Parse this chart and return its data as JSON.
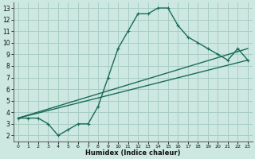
{
  "xlabel": "Humidex (Indice chaleur)",
  "background_color": "#cde8e0",
  "grid_color": "#a8cdc4",
  "line_color": "#1a6b5a",
  "xlim": [
    -0.5,
    23.5
  ],
  "ylim": [
    1.5,
    13.5
  ],
  "xticks": [
    0,
    1,
    2,
    3,
    4,
    5,
    6,
    7,
    8,
    9,
    10,
    11,
    12,
    13,
    14,
    15,
    16,
    17,
    18,
    19,
    20,
    21,
    22,
    23
  ],
  "yticks": [
    2,
    3,
    4,
    5,
    6,
    7,
    8,
    9,
    10,
    11,
    12,
    13
  ],
  "line1_x": [
    0,
    1,
    2,
    3,
    4,
    5,
    6,
    7,
    8,
    9,
    10,
    11,
    12,
    13,
    14,
    15,
    16,
    17,
    18,
    19,
    20,
    21,
    22,
    23
  ],
  "line1_y": [
    3.5,
    3.5,
    3.5,
    3.0,
    2.0,
    2.5,
    3.0,
    3.0,
    4.5,
    7.0,
    9.5,
    11.0,
    12.5,
    12.5,
    13.0,
    13.0,
    11.5,
    10.5,
    10.0,
    9.5,
    9.0,
    8.5,
    9.5,
    8.5
  ],
  "line2_x": [
    0,
    23
  ],
  "line2_y": [
    3.5,
    9.5
  ],
  "line3_x": [
    0,
    23
  ],
  "line3_y": [
    3.5,
    8.5
  ],
  "marker": "+"
}
